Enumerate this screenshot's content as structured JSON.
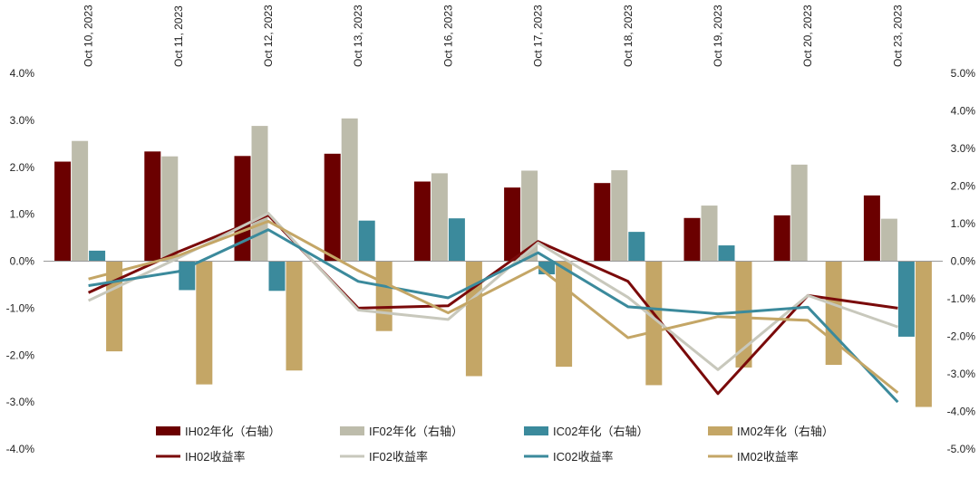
{
  "chart_data": {
    "type": "bar+line",
    "categories": [
      "Oct 10, 2023",
      "Oct 11, 2023",
      "Oct 12, 2023",
      "Oct 13, 2023",
      "Oct 16, 2023",
      "Oct 17, 2023",
      "Oct 18, 2023",
      "Oct 19, 2023",
      "Oct 20, 2023",
      "Oct 23, 2023"
    ],
    "left_axis": {
      "ylim": [
        -4.0,
        4.0
      ],
      "ticks": [
        "4.0%",
        "3.0%",
        "2.0%",
        "1.0%",
        "0.0%",
        "-1.0%",
        "-2.0%",
        "-3.0%",
        "-4.0%"
      ]
    },
    "right_axis": {
      "ylim": [
        -5.0,
        5.0
      ],
      "ticks": [
        "5.0%",
        "4.0%",
        "3.0%",
        "2.0%",
        "1.0%",
        "0.0%",
        "-1.0%",
        "-2.0%",
        "-3.0%",
        "-4.0%",
        "-5.0%"
      ]
    },
    "bar_series": [
      {
        "name": "IH02年化（右轴）",
        "color": "#6b0000",
        "values": [
          2.65,
          2.92,
          2.8,
          2.86,
          2.12,
          1.96,
          2.08,
          1.15,
          1.22,
          1.75
        ]
      },
      {
        "name": "IF02年化（右轴）",
        "color": "#bdbcab",
        "values": [
          3.2,
          2.79,
          3.6,
          3.8,
          2.34,
          2.41,
          2.42,
          1.48,
          2.57,
          1.13
        ]
      },
      {
        "name": "IC02年化（右轴）",
        "color": "#3b8a9c",
        "values": [
          0.28,
          -0.77,
          -0.79,
          1.08,
          1.14,
          -0.35,
          0.78,
          0.42,
          0.0,
          -2.01
        ]
      },
      {
        "name": "IM02年化（右轴）",
        "color": "#c4a666",
        "values": [
          -2.4,
          -3.28,
          -2.91,
          -1.86,
          -3.06,
          -2.81,
          -3.3,
          -2.83,
          -2.76,
          -3.88
        ]
      }
    ],
    "line_series": [
      {
        "name": "IH02收益率",
        "color": "#7a0a0a",
        "values": [
          -0.67,
          0.2,
          0.98,
          -1.0,
          -0.95,
          0.42,
          -0.43,
          -2.82,
          -0.73,
          -1.0
        ]
      },
      {
        "name": "IF02收益率",
        "color": "#c8c8bc",
        "values": [
          -0.84,
          0.07,
          1.02,
          -1.04,
          -1.24,
          0.39,
          -0.77,
          -2.31,
          -0.73,
          -1.4
        ]
      },
      {
        "name": "IC02收益率",
        "color": "#3b8a9c",
        "values": [
          -0.52,
          -0.22,
          0.67,
          -0.43,
          -0.78,
          0.18,
          -0.97,
          -1.12,
          -0.98,
          -3.0
        ]
      },
      {
        "name": "IM02收益率",
        "color": "#c4a666",
        "values": [
          -0.38,
          0.12,
          0.85,
          -0.2,
          -1.1,
          -0.12,
          -1.63,
          -1.18,
          -1.26,
          -2.8
        ]
      }
    ],
    "legend_position": "bottom"
  }
}
